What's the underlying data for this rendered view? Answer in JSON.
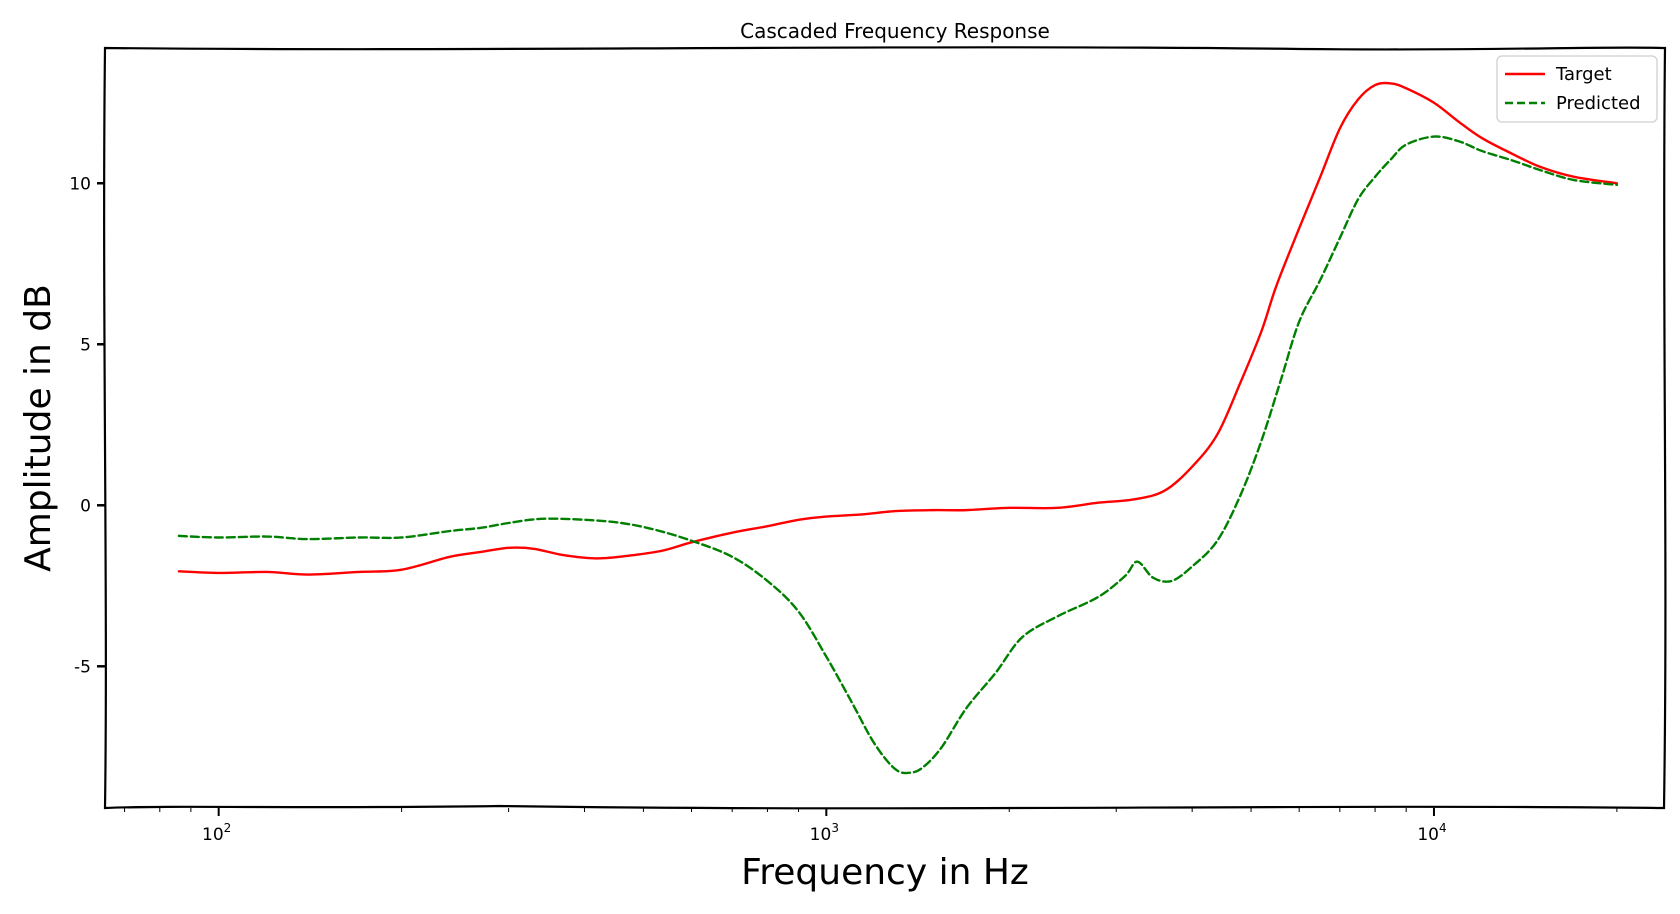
{
  "chart_data": {
    "type": "line",
    "title": "Cascaded Frequency Response",
    "xlabel": "Frequency in Hz",
    "ylabel": "Amplitude in dB",
    "xscale": "log",
    "xlim": [
      65,
      24000
    ],
    "ylim": [
      -9.4,
      14.2
    ],
    "x_ticks": [
      {
        "value": 100,
        "base": "10",
        "exp": "2"
      },
      {
        "value": 1000,
        "base": "10",
        "exp": "3"
      },
      {
        "value": 10000,
        "base": "10",
        "exp": "4"
      }
    ],
    "y_ticks": [
      {
        "value": -5,
        "label": "-5"
      },
      {
        "value": 0,
        "label": "0"
      },
      {
        "value": 5,
        "label": "5"
      },
      {
        "value": 10,
        "label": "10"
      }
    ],
    "grid": false,
    "legend_position": "top-right",
    "series": [
      {
        "name": "Target",
        "color": "#ff0000",
        "style": "solid",
        "points": [
          [
            86,
            -2.05
          ],
          [
            100,
            -2.1
          ],
          [
            120,
            -2.07
          ],
          [
            140,
            -2.15
          ],
          [
            170,
            -2.07
          ],
          [
            200,
            -2.0
          ],
          [
            240,
            -1.6
          ],
          [
            270,
            -1.45
          ],
          [
            300,
            -1.32
          ],
          [
            330,
            -1.35
          ],
          [
            370,
            -1.55
          ],
          [
            420,
            -1.65
          ],
          [
            480,
            -1.55
          ],
          [
            540,
            -1.4
          ],
          [
            600,
            -1.15
          ],
          [
            700,
            -0.85
          ],
          [
            800,
            -0.65
          ],
          [
            900,
            -0.45
          ],
          [
            1000,
            -0.35
          ],
          [
            1150,
            -0.28
          ],
          [
            1300,
            -0.18
          ],
          [
            1500,
            -0.15
          ],
          [
            1700,
            -0.15
          ],
          [
            2000,
            -0.08
          ],
          [
            2400,
            -0.08
          ],
          [
            2800,
            0.08
          ],
          [
            3200,
            0.18
          ],
          [
            3600,
            0.45
          ],
          [
            4000,
            1.2
          ],
          [
            4400,
            2.2
          ],
          [
            4800,
            3.8
          ],
          [
            5200,
            5.4
          ],
          [
            5500,
            6.8
          ],
          [
            6000,
            8.6
          ],
          [
            6500,
            10.2
          ],
          [
            7000,
            11.7
          ],
          [
            7500,
            12.6
          ],
          [
            8000,
            13.05
          ],
          [
            8500,
            13.1
          ],
          [
            9000,
            12.95
          ],
          [
            10000,
            12.5
          ],
          [
            11000,
            11.9
          ],
          [
            12000,
            11.4
          ],
          [
            13500,
            10.9
          ],
          [
            15000,
            10.5
          ],
          [
            17000,
            10.2
          ],
          [
            20000,
            10.0
          ]
        ]
      },
      {
        "name": "Predicted",
        "color": "#008000",
        "style": "dashed",
        "points": [
          [
            86,
            -0.95
          ],
          [
            100,
            -1.0
          ],
          [
            120,
            -0.97
          ],
          [
            140,
            -1.05
          ],
          [
            170,
            -1.0
          ],
          [
            200,
            -1.0
          ],
          [
            240,
            -0.8
          ],
          [
            270,
            -0.7
          ],
          [
            300,
            -0.55
          ],
          [
            340,
            -0.42
          ],
          [
            400,
            -0.45
          ],
          [
            460,
            -0.55
          ],
          [
            520,
            -0.75
          ],
          [
            600,
            -1.1
          ],
          [
            700,
            -1.6
          ],
          [
            800,
            -2.35
          ],
          [
            900,
            -3.3
          ],
          [
            1000,
            -4.7
          ],
          [
            1100,
            -6.1
          ],
          [
            1200,
            -7.4
          ],
          [
            1300,
            -8.2
          ],
          [
            1380,
            -8.3
          ],
          [
            1450,
            -8.1
          ],
          [
            1550,
            -7.5
          ],
          [
            1700,
            -6.3
          ],
          [
            1900,
            -5.2
          ],
          [
            2100,
            -4.1
          ],
          [
            2400,
            -3.45
          ],
          [
            2800,
            -2.85
          ],
          [
            3100,
            -2.2
          ],
          [
            3250,
            -1.75
          ],
          [
            3450,
            -2.25
          ],
          [
            3700,
            -2.35
          ],
          [
            4000,
            -1.9
          ],
          [
            4400,
            -1.1
          ],
          [
            4800,
            0.3
          ],
          [
            5200,
            2.0
          ],
          [
            5600,
            3.9
          ],
          [
            6000,
            5.7
          ],
          [
            6500,
            7.0
          ],
          [
            7000,
            8.3
          ],
          [
            7500,
            9.5
          ],
          [
            8000,
            10.2
          ],
          [
            8500,
            10.75
          ],
          [
            9000,
            11.2
          ],
          [
            10000,
            11.45
          ],
          [
            11000,
            11.3
          ],
          [
            12000,
            11.0
          ],
          [
            13500,
            10.7
          ],
          [
            15000,
            10.4
          ],
          [
            17000,
            10.1
          ],
          [
            20000,
            9.95
          ]
        ]
      }
    ]
  }
}
